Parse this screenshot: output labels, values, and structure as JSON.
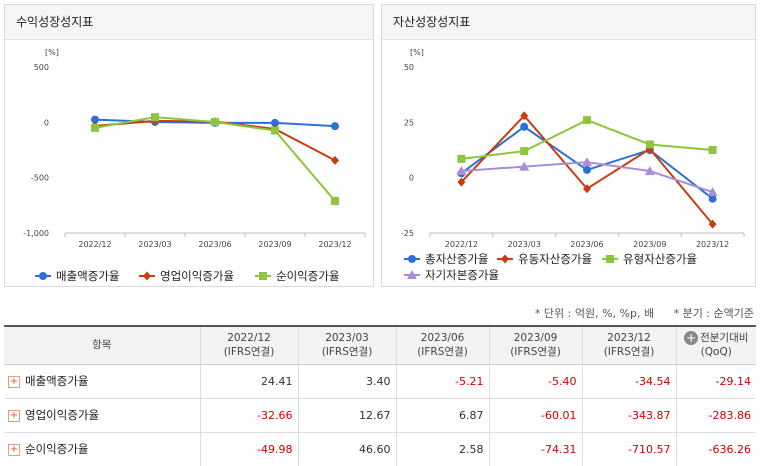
{
  "chart_data": [
    {
      "type": "line",
      "title": "수익성장성지표",
      "unit": "[%]",
      "categories": [
        "2022/12",
        "2023/03",
        "2023/06",
        "2023/09",
        "2023/12"
      ],
      "yticks": [
        500,
        0,
        -500,
        -1000
      ],
      "ytick_labels": [
        "500",
        "0",
        "-500",
        "-1,000"
      ],
      "ylim": [
        -1000,
        500
      ],
      "legend_position": "bottom",
      "series": [
        {
          "name": "매출액증가율",
          "color": "#2a6fdb",
          "marker": "circle",
          "values": [
            24.41,
            3.4,
            -5.21,
            -5.4,
            -34.54
          ]
        },
        {
          "name": "영업이익증가율",
          "color": "#c93c0e",
          "marker": "diamond",
          "values": [
            -32.66,
            12.67,
            6.87,
            -60.01,
            -343.87
          ]
        },
        {
          "name": "순이익증가율",
          "color": "#8cc63e",
          "marker": "square",
          "values": [
            -49.98,
            46.6,
            2.58,
            -74.31,
            -710.57
          ]
        }
      ]
    },
    {
      "type": "line",
      "title": "자산성장성지표",
      "unit": "[%]",
      "categories": [
        "2022/12",
        "2023/03",
        "2023/06",
        "2023/09",
        "2023/12"
      ],
      "yticks": [
        50,
        25,
        0,
        -25
      ],
      "ytick_labels": [
        "50",
        "25",
        "0",
        "-25"
      ],
      "ylim": [
        -25,
        50
      ],
      "legend_position": "bottom",
      "series": [
        {
          "name": "총자산증가율",
          "color": "#2a6fdb",
          "marker": "circle",
          "values": [
            2,
            23,
            3.5,
            12.5,
            -9.5
          ]
        },
        {
          "name": "유동자산증가율",
          "color": "#c93c0e",
          "marker": "diamond",
          "values": [
            -2,
            28,
            -5,
            13,
            -21
          ]
        },
        {
          "name": "유형자산증가율",
          "color": "#8cc63e",
          "marker": "square",
          "values": [
            8.5,
            12,
            26,
            15,
            12.5
          ]
        },
        {
          "name": "자기자본증가율",
          "color": "#a98fd8",
          "marker": "triangle",
          "values": [
            3,
            5,
            7,
            3,
            -6.5
          ]
        }
      ]
    }
  ],
  "notes": {
    "unit": "* 단위 : 억원, %, %p, 배",
    "period": "* 분기 : 순액기준"
  },
  "table": {
    "header_item": "항목",
    "columns": [
      {
        "line1": "2022/12",
        "line2": "(IFRS연결)"
      },
      {
        "line1": "2023/03",
        "line2": "(IFRS연결)"
      },
      {
        "line1": "2023/06",
        "line2": "(IFRS연결)"
      },
      {
        "line1": "2023/09",
        "line2": "(IFRS연결)"
      },
      {
        "line1": "2023/12",
        "line2": "(IFRS연결)"
      },
      {
        "line1": "전분기대비",
        "line2": "(QoQ)"
      }
    ],
    "rows": [
      {
        "label": "매출액증가율",
        "values": [
          "24.41",
          "3.40",
          "-5.21",
          "-5.40",
          "-34.54",
          "-29.14"
        ]
      },
      {
        "label": "영업이익증가율",
        "values": [
          "-32.66",
          "12.67",
          "6.87",
          "-60.01",
          "-343.87",
          "-283.86"
        ]
      },
      {
        "label": "순이익증가율",
        "values": [
          "-49.98",
          "46.60",
          "2.58",
          "-74.31",
          "-710.57",
          "-636.26"
        ]
      }
    ]
  }
}
